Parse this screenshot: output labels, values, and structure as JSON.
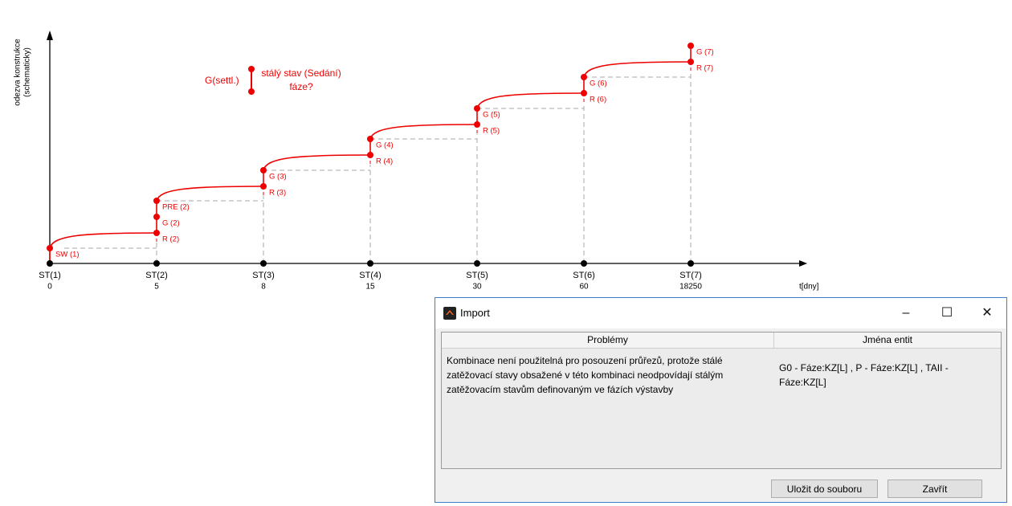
{
  "diagram": {
    "y_axis_label": [
      "odezva konstrukce",
      "(schematicky)"
    ],
    "x_axis_label": "t[dny]",
    "stages": [
      {
        "label": "ST(1)",
        "day": 0,
        "points": [
          "SW (1)"
        ]
      },
      {
        "label": "ST(2)",
        "day": 5,
        "points": [
          "R (2)",
          "G (2)",
          "PRE (2)"
        ]
      },
      {
        "label": "ST(3)",
        "day": 8,
        "points": [
          "R (3)",
          "G (3)"
        ]
      },
      {
        "label": "ST(4)",
        "day": 15,
        "points": [
          "R (4)",
          "G (4)"
        ]
      },
      {
        "label": "ST(5)",
        "day": 30,
        "points": [
          "R (5)",
          "G (5)"
        ]
      },
      {
        "label": "ST(6)",
        "day": 60,
        "points": [
          "R (6)",
          "G (6)"
        ]
      },
      {
        "label": "ST(7)",
        "day": 18250,
        "points": [
          "R (7)",
          "G (7)"
        ]
      }
    ],
    "annotation": {
      "label": "G(settl.)",
      "text": [
        "stálý stav (Sedání)",
        "fáze?"
      ]
    }
  },
  "dialog": {
    "title": "Import",
    "columns": [
      "Problémy",
      "Jména entit"
    ],
    "rows": [
      [
        [
          "Kombinace není použitelná pro posouzení průřezů, protože stálé",
          "zatěžovací stavy obsažené v této kombinaci neodpovídají stálým",
          "zatěžovacím stavům definovaným ve fázích výstavby"
        ],
        [
          "G0 - Fáze:KZ[L] , P - Fáze:KZ[L] , TAII -",
          "Fáze:KZ[L]"
        ]
      ]
    ],
    "buttons": [
      "Uložit do souboru",
      "Zavřít"
    ]
  }
}
